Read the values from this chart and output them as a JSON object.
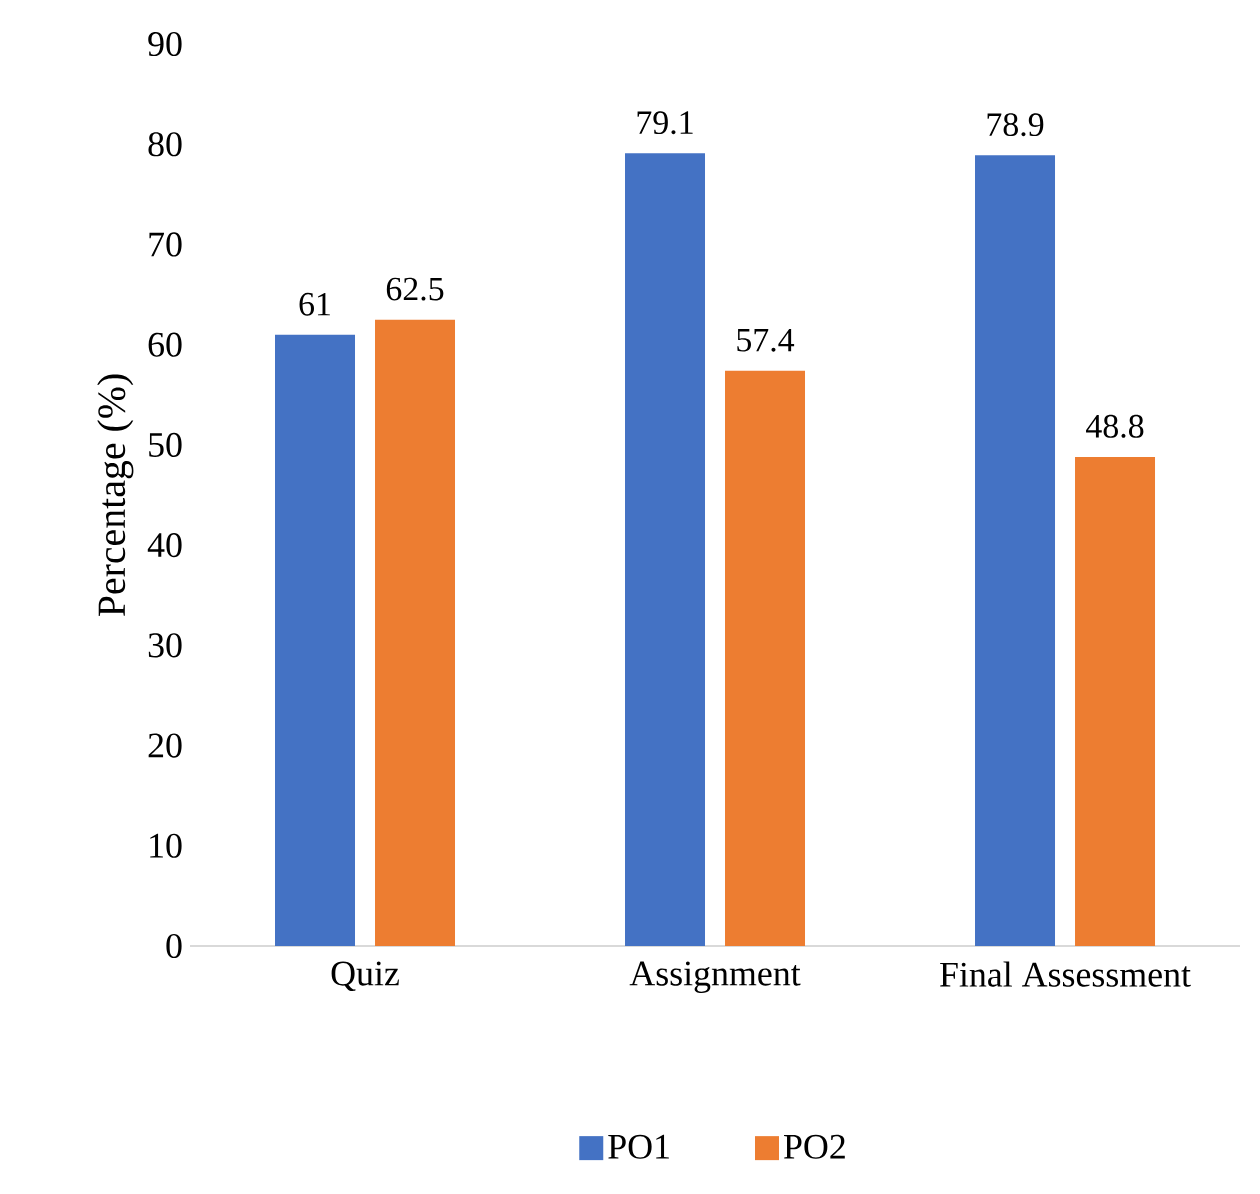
{
  "chart_data": {
    "type": "bar",
    "categories": [
      "Quiz",
      "Assignment",
      "Final Assessment"
    ],
    "series": [
      {
        "name": "PO1",
        "color": "#4472c4",
        "values": [
          61,
          79.1,
          78.9
        ]
      },
      {
        "name": "PO2",
        "color": "#ed7d31",
        "values": [
          62.5,
          57.4,
          48.8
        ]
      }
    ],
    "ylabel": "Percentage (%)",
    "ylim": [
      0,
      90
    ],
    "yticks": [
      0,
      10,
      20,
      30,
      40,
      50,
      60,
      70,
      80,
      90
    ],
    "data_labels": true,
    "legend": "bottom"
  }
}
